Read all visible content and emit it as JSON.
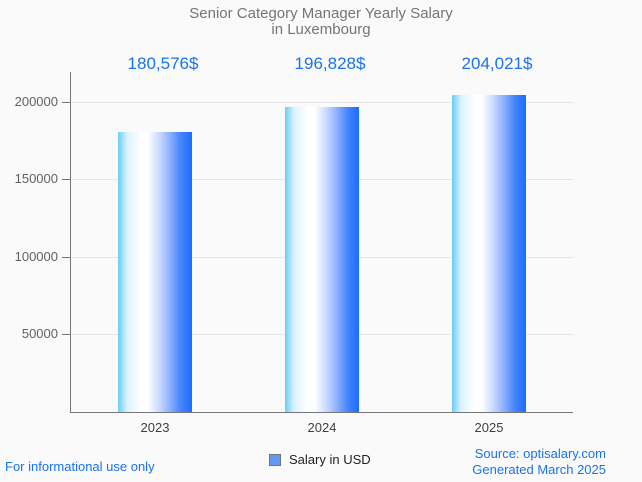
{
  "title": {
    "line1": "Senior Category Manager Yearly Salary",
    "line2": "in Luxembourg"
  },
  "legend": {
    "label": "Salary in USD"
  },
  "footer": {
    "disclaimer": "For informational use only",
    "source": "Source: optisalary.com",
    "generated": "Generated March 2025"
  },
  "chart_data": {
    "type": "bar",
    "title": "Senior Category Manager Yearly Salary in Luxembourg",
    "categories": [
      "2023",
      "2024",
      "2025"
    ],
    "series": [
      {
        "name": "Salary in USD",
        "values": [
          180576,
          196828,
          204021
        ]
      }
    ],
    "value_labels": [
      "180,576$",
      "196,828$",
      "204,021$"
    ],
    "y_ticks": [
      50000,
      100000,
      150000,
      200000
    ],
    "y_tick_labels": [
      "50000",
      "100000",
      "150000",
      "200000"
    ],
    "ylim": [
      0,
      219000
    ],
    "grid": true,
    "legend_position": "bottom",
    "xlabel": "",
    "ylabel": ""
  },
  "colors": {
    "background": "#fafafa",
    "title_text": "#757575",
    "value_label": "#1a73e8",
    "footer_link": "#1a73e8",
    "axis_line": "#757575",
    "gridline": "#e6e6e6",
    "y_label": "#616161",
    "x_label": "#404040",
    "legend_fill": "#5e9cf5",
    "legend_border": "#757575",
    "bar_gradient": [
      "#69cdf9",
      "#d9f1fe",
      "#ffffff",
      "#ffffff",
      "#ccdcfe",
      "#8fb0fd",
      "#4584fc",
      "#1a6dfc"
    ]
  }
}
